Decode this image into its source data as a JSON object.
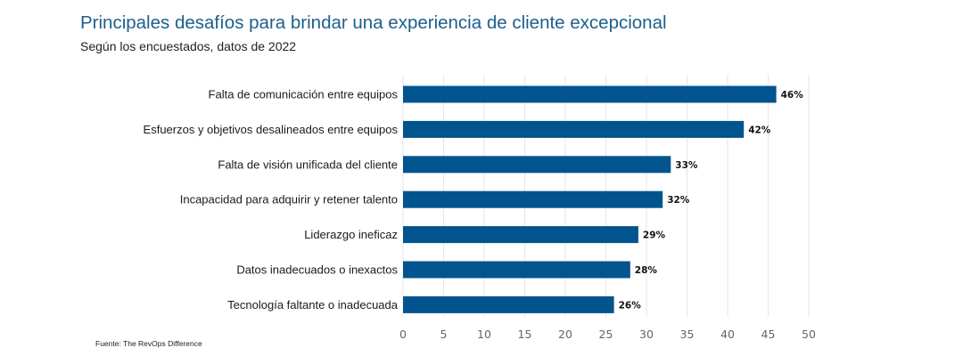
{
  "chart_data": {
    "type": "bar",
    "orientation": "horizontal",
    "title": "Principales desafíos para brindar una experiencia de cliente excepcional",
    "subtitle": "Según los encuestados, datos de 2022",
    "source": "Fuente: The RevOps Difference",
    "categories": [
      "Falta de comunicación entre equipos",
      "Esfuerzos y objetivos desalineados entre equipos",
      "Falta de visión unificada del cliente",
      "Incapacidad para adquirir y retener talento",
      "Liderazgo ineficaz",
      "Datos inadecuados o inexactos",
      "Tecnología faltante o inadecuada"
    ],
    "values": [
      46,
      42,
      33,
      32,
      29,
      28,
      26
    ],
    "value_labels": [
      "46%",
      "42%",
      "33%",
      "32%",
      "29%",
      "28%",
      "26%"
    ],
    "xlim": [
      0,
      50
    ],
    "xticks": [
      0,
      5,
      10,
      15,
      20,
      25,
      30,
      35,
      40,
      45,
      50
    ],
    "xlabel": "",
    "ylabel": "",
    "grid": "vertical",
    "legend": "none",
    "bar_color": "#02548f"
  }
}
